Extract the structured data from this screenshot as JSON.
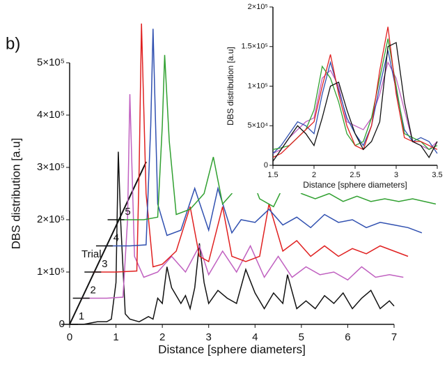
{
  "chart_data": [
    {
      "type": "line",
      "panel_label": "b)",
      "annotation": "Trial",
      "xlabel": "Distance [sphere diameters]",
      "ylabel": "DBS distribution [a.u]",
      "xlim": [
        0,
        7
      ],
      "xticks": [
        0,
        1,
        2,
        3,
        4,
        5,
        6,
        7
      ],
      "ylim": [
        0,
        500000
      ],
      "yticks": [
        0,
        {
          "value": 100000,
          "label": "1×10⁵"
        },
        {
          "value": 200000,
          "label": "2×10⁵"
        },
        {
          "value": 300000,
          "label": "3×10⁵"
        },
        {
          "value": 400000,
          "label": "4×10⁵"
        },
        {
          "value": 500000,
          "label": "5×10⁵"
        }
      ],
      "series": [
        {
          "name": "1",
          "color": "#111111",
          "x": [
            0,
            0.3,
            0.6,
            0.8,
            0.9,
            1.0,
            1.05,
            1.1,
            1.2,
            1.3,
            1.5,
            1.7,
            1.8,
            1.9,
            2.0,
            2.1,
            2.2,
            2.4,
            2.5,
            2.6,
            2.7,
            2.8,
            2.9,
            3.0,
            3.2,
            3.4,
            3.6,
            3.8,
            4.0,
            4.2,
            4.4,
            4.6,
            4.7,
            4.9,
            5.1,
            5.3,
            5.5,
            5.7,
            5.9,
            6.1,
            6.3,
            6.5,
            6.7,
            6.9,
            7.0
          ],
          "values": [
            0,
            0,
            5000,
            5000,
            10000,
            80000,
            330000,
            200000,
            20000,
            10000,
            5000,
            15000,
            10000,
            50000,
            40000,
            110000,
            70000,
            40000,
            55000,
            30000,
            70000,
            155000,
            80000,
            40000,
            65000,
            50000,
            40000,
            105000,
            60000,
            30000,
            60000,
            40000,
            95000,
            30000,
            45000,
            30000,
            55000,
            40000,
            60000,
            30000,
            50000,
            65000,
            30000,
            45000,
            35000
          ]
        },
        {
          "name": "2",
          "color": "#c060c0",
          "x": [
            0.25,
            0.8,
            1.15,
            1.25,
            1.3,
            1.4,
            1.6,
            1.9,
            2.2,
            2.5,
            2.8,
            3.0,
            3.3,
            3.6,
            3.9,
            4.2,
            4.5,
            4.8,
            5.1,
            5.4,
            5.7,
            6.0,
            6.3,
            6.6,
            6.9,
            7.2
          ],
          "values": [
            50000,
            50000,
            52000,
            200000,
            440000,
            130000,
            90000,
            100000,
            130000,
            100000,
            150000,
            95000,
            140000,
            100000,
            150000,
            90000,
            130000,
            90000,
            110000,
            95000,
            100000,
            85000,
            110000,
            90000,
            95000,
            90000
          ]
        },
        {
          "name": "3",
          "color": "#e02020",
          "x": [
            0.5,
            1.0,
            1.45,
            1.5,
            1.55,
            1.65,
            1.8,
            2.0,
            2.3,
            2.6,
            2.8,
            3.0,
            3.3,
            3.5,
            3.8,
            4.1,
            4.3,
            4.6,
            4.9,
            5.2,
            5.5,
            5.8,
            6.1,
            6.4,
            6.7,
            7.0,
            7.3
          ],
          "values": [
            100000,
            100000,
            102000,
            300000,
            575000,
            250000,
            110000,
            115000,
            140000,
            225000,
            130000,
            120000,
            225000,
            130000,
            120000,
            130000,
            230000,
            140000,
            160000,
            130000,
            150000,
            130000,
            145000,
            135000,
            150000,
            140000,
            130000
          ]
        },
        {
          "name": "4",
          "color": "#3050b0",
          "x": [
            0.75,
            1.3,
            1.65,
            1.75,
            1.8,
            1.9,
            2.1,
            2.4,
            2.7,
            3.0,
            3.2,
            3.5,
            3.7,
            4.0,
            4.3,
            4.6,
            4.9,
            5.2,
            5.5,
            5.8,
            6.1,
            6.4,
            6.7,
            7.0,
            7.3,
            7.6
          ],
          "values": [
            150000,
            150000,
            152000,
            380000,
            565000,
            230000,
            170000,
            180000,
            260000,
            180000,
            260000,
            175000,
            200000,
            195000,
            220000,
            190000,
            205000,
            185000,
            210000,
            195000,
            200000,
            185000,
            195000,
            190000,
            185000,
            175000
          ]
        },
        {
          "name": "5",
          "color": "#30a030",
          "x": [
            1.0,
            1.6,
            1.9,
            2.0,
            2.05,
            2.15,
            2.3,
            2.6,
            2.9,
            3.1,
            3.3,
            3.5,
            3.8,
            4.1,
            4.4,
            4.7,
            5.0,
            5.3,
            5.6,
            5.9,
            6.2,
            6.5,
            6.8,
            7.1,
            7.4,
            7.9
          ],
          "values": [
            200000,
            200000,
            205000,
            380000,
            515000,
            350000,
            210000,
            220000,
            250000,
            320000,
            230000,
            250000,
            310000,
            240000,
            225000,
            280000,
            250000,
            240000,
            250000,
            235000,
            245000,
            235000,
            240000,
            235000,
            240000,
            230000
          ]
        }
      ]
    },
    {
      "type": "line",
      "xlabel": "Distance [sphere diameters]",
      "ylabel": "DBS distribution [a.u]",
      "xlim": [
        1.5,
        3.5
      ],
      "xticks": [
        1.5,
        2,
        2.5,
        3,
        3.5
      ],
      "ylim": [
        0,
        200000
      ],
      "yticks": [
        0,
        {
          "value": 50000,
          "label": "5×10⁴"
        },
        {
          "value": 100000,
          "label": "1×10⁵"
        },
        {
          "value": 150000,
          "label": "1.5×10⁵"
        },
        {
          "value": 200000,
          "label": "2×10⁵"
        }
      ],
      "x": [
        1.5,
        1.6,
        1.7,
        1.8,
        1.9,
        2.0,
        2.1,
        2.2,
        2.3,
        2.4,
        2.5,
        2.6,
        2.7,
        2.8,
        2.9,
        3.0,
        3.1,
        3.2,
        3.3,
        3.4,
        3.5
      ],
      "series": [
        {
          "color": "#c060c0",
          "values": [
            15000,
            20000,
            35000,
            45000,
            55000,
            60000,
            110000,
            120000,
            100000,
            55000,
            50000,
            45000,
            60000,
            90000,
            130000,
            110000,
            70000,
            30000,
            25000,
            20000,
            30000
          ]
        },
        {
          "color": "#3050b0",
          "values": [
            15000,
            25000,
            40000,
            55000,
            50000,
            40000,
            90000,
            130000,
            95000,
            60000,
            40000,
            25000,
            50000,
            100000,
            145000,
            95000,
            45000,
            30000,
            35000,
            30000,
            15000
          ]
        },
        {
          "color": "#30a030",
          "values": [
            20000,
            22000,
            25000,
            35000,
            45000,
            70000,
            125000,
            110000,
            80000,
            40000,
            25000,
            30000,
            60000,
            110000,
            160000,
            100000,
            40000,
            35000,
            30000,
            20000,
            25000
          ]
        },
        {
          "color": "#e02020",
          "values": [
            10000,
            15000,
            25000,
            35000,
            45000,
            55000,
            100000,
            140000,
            90000,
            50000,
            25000,
            20000,
            50000,
            120000,
            175000,
            90000,
            35000,
            30000,
            30000,
            25000,
            20000
          ]
        },
        {
          "color": "#111111",
          "values": [
            5000,
            20000,
            35000,
            50000,
            40000,
            25000,
            60000,
            100000,
            105000,
            70000,
            40000,
            20000,
            30000,
            55000,
            150000,
            155000,
            80000,
            30000,
            25000,
            10000,
            30000
          ]
        }
      ]
    }
  ]
}
